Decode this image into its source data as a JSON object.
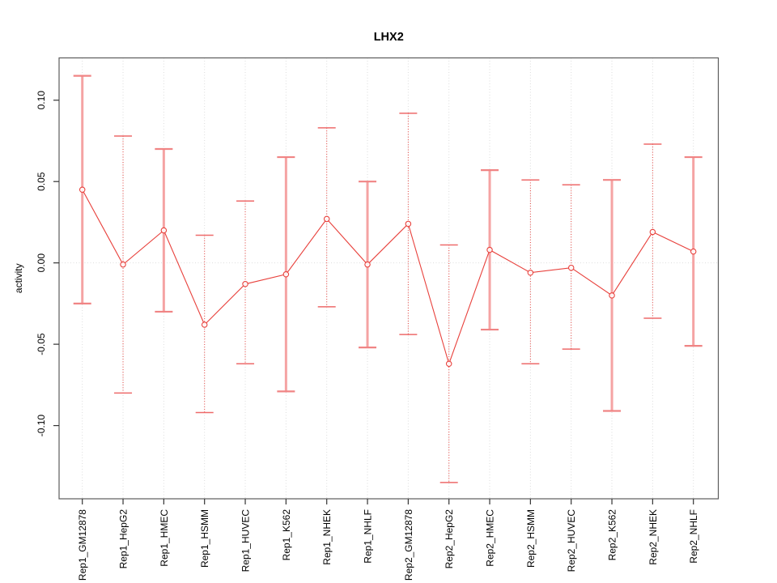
{
  "window": {
    "background": "#ffffff"
  },
  "chart_data": {
    "type": "line",
    "title": "LHX2",
    "xlabel": "",
    "ylabel": "activity",
    "legend": "none",
    "grid": "dotted vertical gridline at each category; dotted horizontal line at y=0",
    "ylim": [
      -0.145,
      0.126
    ],
    "yticks": [
      0.1,
      0.05,
      0.0,
      -0.05,
      -0.1
    ],
    "ytick_labels": [
      "0.10",
      "0.05",
      "0.00",
      "-0.05",
      "-0.10"
    ],
    "categories": [
      "Rep1_GM12878",
      "Rep1_HepG2",
      "Rep1_HMEC",
      "Rep1_HSMM",
      "Rep1_HUVEC",
      "Rep1_K562",
      "Rep1_NHEK",
      "Rep1_NHLF",
      "Rep2_GM12878",
      "Rep2_HepG2",
      "Rep2_HMEC",
      "Rep2_HSMM",
      "Rep2_HUVEC",
      "Rep2_K562",
      "Rep2_NHEK",
      "Rep2_NHLF"
    ],
    "series": [
      {
        "name": "activity",
        "marker": "open-circle",
        "values": [
          0.045,
          -0.001,
          0.02,
          -0.038,
          -0.013,
          -0.007,
          0.027,
          -0.001,
          0.024,
          -0.062,
          0.008,
          -0.006,
          -0.003,
          -0.02,
          0.019,
          0.007
        ],
        "error_low": [
          -0.025,
          -0.08,
          -0.03,
          -0.092,
          -0.062,
          -0.079,
          -0.027,
          -0.052,
          -0.044,
          -0.135,
          -0.041,
          -0.062,
          -0.053,
          -0.091,
          -0.034,
          -0.051
        ],
        "error_high": [
          0.115,
          0.078,
          0.07,
          0.017,
          0.038,
          0.065,
          0.083,
          0.05,
          0.092,
          0.011,
          0.057,
          0.051,
          0.048,
          0.051,
          0.073,
          0.065
        ],
        "error_bar_styles": [
          "solid",
          "dotted",
          "solid",
          "dotted",
          "dotted",
          "solid",
          "dotted",
          "solid",
          "dotted",
          "dotted",
          "solid",
          "dotted",
          "dotted",
          "solid",
          "dotted",
          "solid"
        ]
      }
    ],
    "colors": {
      "point_line_red": "#e8413c",
      "solid_error_bar": "#f5a3a3",
      "solid_error_cap": "#f08484",
      "dotted_error_bar": "#e8413c",
      "dotted_error_cap": "#ee6a6a",
      "gridline": "#dcdcdc",
      "plot_border": "#5c5c5c",
      "axis_tick": "#333333",
      "text": "#000000"
    }
  }
}
